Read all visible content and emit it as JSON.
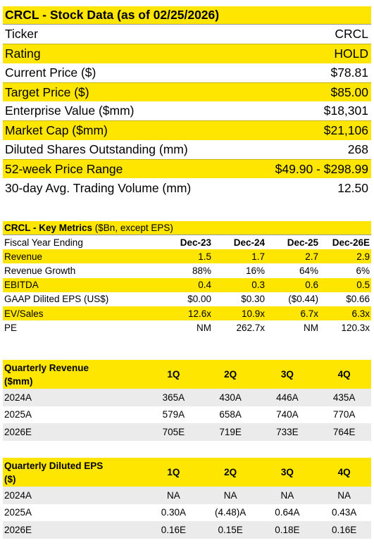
{
  "stock_data": {
    "title": "CRCL - Stock Data (as of 02/25/2026)",
    "rows": [
      {
        "label": "Ticker",
        "value": "CRCL"
      },
      {
        "label": "Rating",
        "value": "HOLD"
      },
      {
        "label": "Current Price ($)",
        "value": "$78.81"
      },
      {
        "label": "Target Price ($)",
        "value": "$85.00"
      },
      {
        "label": "Enterprise Value ($mm)",
        "value": "$18,301"
      },
      {
        "label": "Market Cap ($mm)",
        "value": "$21,106"
      },
      {
        "label": "Diluted Shares Outstanding (mm)",
        "value": "268"
      },
      {
        "label": "52-week Price Range",
        "value": "$49.90 - $298.99"
      },
      {
        "label": "30-day Avg. Trading Volume (mm)",
        "value": "12.50"
      }
    ]
  },
  "key_metrics": {
    "title_bold": "CRCL - Key Metrics",
    "title_rest": " ($Bn, except EPS)",
    "header": {
      "label": "Fiscal Year Ending",
      "cols": [
        "Dec-23",
        "Dec-24",
        "Dec-25",
        "Dec-26E"
      ]
    },
    "rows": [
      {
        "label": "Revenue",
        "values": [
          "1.5",
          "1.7",
          "2.7",
          "2.9"
        ]
      },
      {
        "label": "Revenue Growth",
        "values": [
          "88%",
          "16%",
          "64%",
          "6%"
        ]
      },
      {
        "label": "EBITDA",
        "values": [
          "0.4",
          "0.3",
          "0.6",
          "0.5"
        ]
      },
      {
        "label": "GAAP Dilited EPS (US$)",
        "values": [
          "$0.00",
          "$0.30",
          "($0.44)",
          "$0.66"
        ]
      },
      {
        "label": "EV/Sales",
        "values": [
          "12.6x",
          "10.9x",
          "6.7x",
          "6.3x"
        ]
      },
      {
        "label": "PE",
        "values": [
          "NM",
          "262.7x",
          "NM",
          "120.3x"
        ]
      }
    ]
  },
  "quarterly_revenue": {
    "title_line1": "Quarterly Revenue",
    "title_line2": "($mm)",
    "cols": [
      "1Q",
      "2Q",
      "3Q",
      "4Q"
    ],
    "rows": [
      {
        "label": "2024A",
        "values": [
          "365A",
          "430A",
          "446A",
          "435A"
        ]
      },
      {
        "label": "2025A",
        "values": [
          "579A",
          "658A",
          "740A",
          "770A"
        ]
      },
      {
        "label": "2026E",
        "values": [
          "705E",
          "719E",
          "733E",
          "764E"
        ]
      }
    ]
  },
  "quarterly_eps": {
    "title_line1": "Quarterly Diluted EPS",
    "title_line2": "($)",
    "cols": [
      "1Q",
      "2Q",
      "3Q",
      "4Q"
    ],
    "rows": [
      {
        "label": "2024A",
        "values": [
          "NA",
          "NA",
          "NA",
          "NA"
        ]
      },
      {
        "label": "2025A",
        "values": [
          "0.30A",
          "(4.48)A",
          "0.64A",
          "0.43A"
        ]
      },
      {
        "label": "2026E",
        "values": [
          "0.16E",
          "0.15E",
          "0.18E",
          "0.16E"
        ]
      }
    ]
  }
}
